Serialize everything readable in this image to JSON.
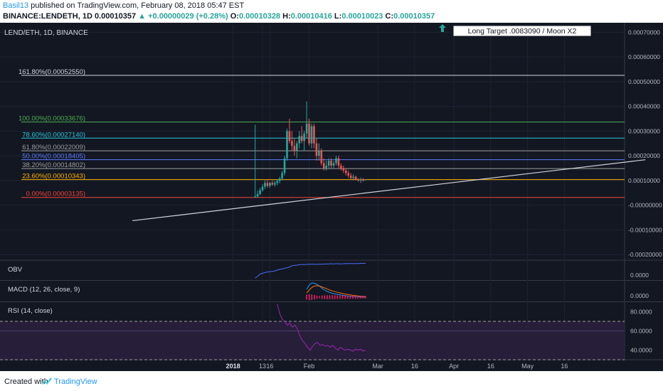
{
  "header": {
    "author": "Basil13",
    "published": "published on TradingView.com, February 08, 2018 05:47 EST",
    "symbol": "BINANCE:LENDETH, 1D",
    "price": "0.00010357",
    "change": "▲ +0.00000029 (+0.28%)",
    "o_label": "O:",
    "o": "0.00010328",
    "h_label": "H:",
    "h": "0.00010416",
    "l_label": "L:",
    "l": "0.00010023",
    "c_label": "C:",
    "c": "0.00010357"
  },
  "footer": {
    "created": "Created with",
    "brand": "TradingView"
  },
  "colors": {
    "background": "#131722",
    "up": "#26a69a",
    "down": "#ef5350",
    "obv": "#4a6cf7",
    "macd": "#2196f3",
    "signal": "#ff6d00",
    "rsi": "#9c27b0"
  },
  "chart_data": {
    "type": "candlestick",
    "title": "LEND/ETH, 1D, BINANCE",
    "ylim": [
      -0.00022,
      0.00073
    ],
    "y_ticks": [
      "0.00070000",
      "0.00060000",
      "0.00050000",
      "0.00040000",
      "0.00030000",
      "0.00020000",
      "0.00010000",
      "-0.00000000",
      "-0.00010000",
      "-0.00020000"
    ],
    "x_ticks": [
      "13",
      "2018",
      "16",
      "Feb",
      "Mar",
      "16",
      "Apr",
      "16",
      "May",
      "16"
    ],
    "annotation": "Long Target .0083090 / Moon X2",
    "fib_levels": [
      {
        "label": "161.80%(0.00052550)",
        "value": 0.0005255,
        "color": "#d1d4dc"
      },
      {
        "label": "100.00%(0.00033676)",
        "value": 0.00033676,
        "color": "#4caf50"
      },
      {
        "label": "78.60%(0.00027140)",
        "value": 0.0002714,
        "color": "#26c6da"
      },
      {
        "label": "61.80%(0.00022009)",
        "value": 0.00022009,
        "color": "#9e9e9e"
      },
      {
        "label": "50.00%(0.00018405)",
        "value": 0.00018405,
        "color": "#5c7cfa"
      },
      {
        "label": "38.20%(0.00014802)",
        "value": 0.00014802,
        "color": "#9e9e9e"
      },
      {
        "label": "23.60%(0.00010343)",
        "value": 0.00010343,
        "color": "#ffb300"
      },
      {
        "label": "0.00%(0.00003135)",
        "value": 3.135e-05,
        "color": "#f44336"
      }
    ],
    "trendline": {
      "from": [
        "Nov 21 2017",
        -6.3e-05
      ],
      "to": [
        "Jun 18 2018",
        0.000184
      ]
    },
    "candles": [
      {
        "d": "Jan 10",
        "o": 3.3e-05,
        "h": 0.000326,
        "l": 3e-05,
        "c": 3.5e-05
      },
      {
        "d": "Jan 11",
        "o": 3.5e-05,
        "h": 6e-05,
        "l": 3e-05,
        "c": 4.5e-05
      },
      {
        "d": "Jan 12",
        "o": 4.5e-05,
        "h": 7e-05,
        "l": 4e-05,
        "c": 6e-05
      },
      {
        "d": "Jan 13",
        "o": 6e-05,
        "h": 8.5e-05,
        "l": 5.5e-05,
        "c": 7.5e-05
      },
      {
        "d": "Jan 14",
        "o": 7.5e-05,
        "h": 0.0001,
        "l": 6.5e-05,
        "c": 9e-05
      },
      {
        "d": "Jan 15",
        "o": 9e-05,
        "h": 0.000105,
        "l": 7e-05,
        "c": 7.8e-05
      },
      {
        "d": "Jan 16",
        "o": 7.8e-05,
        "h": 9.5e-05,
        "l": 7e-05,
        "c": 9e-05
      },
      {
        "d": "Jan 17",
        "o": 9e-05,
        "h": 0.0001,
        "l": 7.8e-05,
        "c": 8.3e-05
      },
      {
        "d": "Jan 18",
        "o": 8.3e-05,
        "h": 9.8e-05,
        "l": 7.5e-05,
        "c": 9e-05
      },
      {
        "d": "Jan 19",
        "o": 9e-05,
        "h": 0.000105,
        "l": 8e-05,
        "c": 9.8e-05
      },
      {
        "d": "Jan 20",
        "o": 9.8e-05,
        "h": 0.000115,
        "l": 8.8e-05,
        "c": 0.000108
      },
      {
        "d": "Jan 21",
        "o": 0.000108,
        "h": 0.00014,
        "l": 0.0001,
        "c": 0.00013
      },
      {
        "d": "Jan 22",
        "o": 0.00013,
        "h": 0.0002,
        "l": 0.00012,
        "c": 0.00019
      },
      {
        "d": "Jan 23",
        "o": 0.00019,
        "h": 0.00031,
        "l": 0.00018,
        "c": 0.0003
      },
      {
        "d": "Jan 24",
        "o": 0.0003,
        "h": 0.00035,
        "l": 0.00025,
        "c": 0.00026
      },
      {
        "d": "Jan 25",
        "o": 0.00026,
        "h": 0.0003,
        "l": 0.00022,
        "c": 0.00024
      },
      {
        "d": "Jan 26",
        "o": 0.00024,
        "h": 0.00027,
        "l": 0.0002,
        "c": 0.00022
      },
      {
        "d": "Jan 27",
        "o": 0.00022,
        "h": 0.00026,
        "l": 0.00019,
        "c": 0.00025
      },
      {
        "d": "Jan 28",
        "o": 0.00025,
        "h": 0.0003,
        "l": 0.00023,
        "c": 0.00028
      },
      {
        "d": "Jan 29",
        "o": 0.00028,
        "h": 0.00032,
        "l": 0.00025,
        "c": 0.00026
      },
      {
        "d": "Jan 30",
        "o": 0.00026,
        "h": 0.0003,
        "l": 0.00022,
        "c": 0.00029
      },
      {
        "d": "Jan 31",
        "o": 0.00029,
        "h": 0.00042,
        "l": 0.00027,
        "c": 0.00033
      },
      {
        "d": "Feb 1",
        "o": 0.00033,
        "h": 0.00035,
        "l": 0.00024,
        "c": 0.00025
      },
      {
        "d": "Feb 2",
        "o": 0.00025,
        "h": 0.00033,
        "l": 0.00023,
        "c": 0.00032
      },
      {
        "d": "Feb 3",
        "o": 0.00032,
        "h": 0.00033,
        "l": 0.00023,
        "c": 0.00025
      },
      {
        "d": "Feb 4",
        "o": 0.00025,
        "h": 0.00027,
        "l": 0.00018,
        "c": 0.0002
      },
      {
        "d": "Feb 5",
        "o": 0.0002,
        "h": 0.00025,
        "l": 0.00018,
        "c": 0.00022
      },
      {
        "d": "Feb 6",
        "o": 0.00022,
        "h": 0.00023,
        "l": 0.00016,
        "c": 0.00017
      },
      {
        "d": "Feb 7",
        "o": 0.00017,
        "h": 0.00019,
        "l": 0.00014,
        "c": 0.00015
      },
      {
        "d": "Feb 8",
        "o": 0.00015,
        "h": 0.00018,
        "l": 0.00014,
        "c": 0.00016
      },
      {
        "d": "Feb 9",
        "o": 0.00016,
        "h": 0.00019,
        "l": 0.00015,
        "c": 0.00018
      },
      {
        "d": "Feb 10",
        "o": 0.00018,
        "h": 0.00019,
        "l": 0.00015,
        "c": 0.00016
      },
      {
        "d": "Feb 11",
        "o": 0.00016,
        "h": 0.00018,
        "l": 0.00015,
        "c": 0.00017
      },
      {
        "d": "Feb 12",
        "o": 0.00017,
        "h": 0.0002,
        "l": 0.00016,
        "c": 0.00019
      },
      {
        "d": "Feb 13",
        "o": 0.00019,
        "h": 0.0002,
        "l": 0.00015,
        "c": 0.00016
      },
      {
        "d": "Feb 14",
        "o": 0.00016,
        "h": 0.00017,
        "l": 0.00014,
        "c": 0.00015
      },
      {
        "d": "Feb 15",
        "o": 0.00015,
        "h": 0.00016,
        "l": 0.00013,
        "c": 0.00014
      },
      {
        "d": "Feb 16",
        "o": 0.00014,
        "h": 0.00015,
        "l": 0.00012,
        "c": 0.00013
      },
      {
        "d": "Feb 17",
        "o": 0.00013,
        "h": 0.00014,
        "l": 0.00011,
        "c": 0.00012
      },
      {
        "d": "Feb 18",
        "o": 0.00012,
        "h": 0.00013,
        "l": 0.000105,
        "c": 0.00011
      },
      {
        "d": "Feb 19",
        "o": 0.00011,
        "h": 0.000125,
        "l": 0.0001,
        "c": 0.000115
      },
      {
        "d": "Feb 20",
        "o": 0.000115,
        "h": 0.00012,
        "l": 0.0001,
        "c": 0.000105
      },
      {
        "d": "Feb 21",
        "o": 0.000105,
        "h": 0.00011,
        "l": 9.5e-05,
        "c": 0.0001
      },
      {
        "d": "Feb 22",
        "o": 0.0001,
        "h": 0.000112,
        "l": 9e-05,
        "c": 0.000105
      },
      {
        "d": "Feb 23",
        "o": 0.000105,
        "h": 0.00011,
        "l": 9.5e-05,
        "c": 0.0001
      },
      {
        "d": "Feb 24",
        "o": 0.00010328,
        "h": 0.00010416,
        "l": 0.00010023,
        "c": 0.00010357
      }
    ],
    "panes": {
      "obv": {
        "title": "OBV",
        "y_ticks": [
          "0.0000"
        ],
        "series": [
          0.0,
          0.1,
          0.25,
          0.3,
          0.35,
          0.38,
          0.4,
          0.42,
          0.45,
          0.5,
          0.55,
          0.58,
          0.62,
          0.65,
          0.7,
          0.78,
          0.8,
          0.82,
          0.85,
          0.86,
          0.86,
          0.87,
          0.88,
          0.88,
          0.88,
          0.87,
          0.88,
          0.88,
          0.89,
          0.89,
          0.9,
          0.91,
          0.9,
          0.91,
          0.91,
          0.9,
          0.91,
          0.92,
          0.92,
          0.92,
          0.92,
          0.92,
          0.92,
          0.93,
          0.93,
          0.93
        ]
      },
      "macd": {
        "title": "MACD (12, 26, close, 9)",
        "y_ticks": [
          "0.0000"
        ],
        "macd": [
          0.55,
          0.85,
          1.0,
          0.98,
          0.9,
          0.78,
          0.62,
          0.5,
          0.4,
          0.33,
          0.27,
          0.23,
          0.2,
          0.17,
          0.14,
          0.11,
          0.08,
          0.06,
          0.05,
          0.04,
          0.03,
          0.02,
          0.01,
          0.0
        ],
        "signal": [
          0.3,
          0.5,
          0.68,
          0.78,
          0.8,
          0.78,
          0.72,
          0.65,
          0.57,
          0.5,
          0.44,
          0.39,
          0.34,
          0.3,
          0.26,
          0.22,
          0.19,
          0.16,
          0.13,
          0.11,
          0.09,
          0.07,
          0.05,
          0.03
        ]
      },
      "rsi": {
        "title": "RSI (14, close)",
        "y_ticks": [
          "80.0000",
          "60.0000",
          "40.0000"
        ],
        "ylim": [
          30,
          90
        ],
        "upper": 70,
        "lower": 30,
        "series": [
          88,
          78,
          72,
          70,
          66,
          68,
          64,
          66,
          62,
          55,
          50,
          47,
          43,
          40,
          44,
          47,
          48,
          45,
          46,
          44,
          45,
          43,
          45,
          42,
          40,
          43,
          41,
          40,
          41,
          40,
          39,
          41,
          40,
          41,
          39,
          40
        ]
      }
    }
  }
}
